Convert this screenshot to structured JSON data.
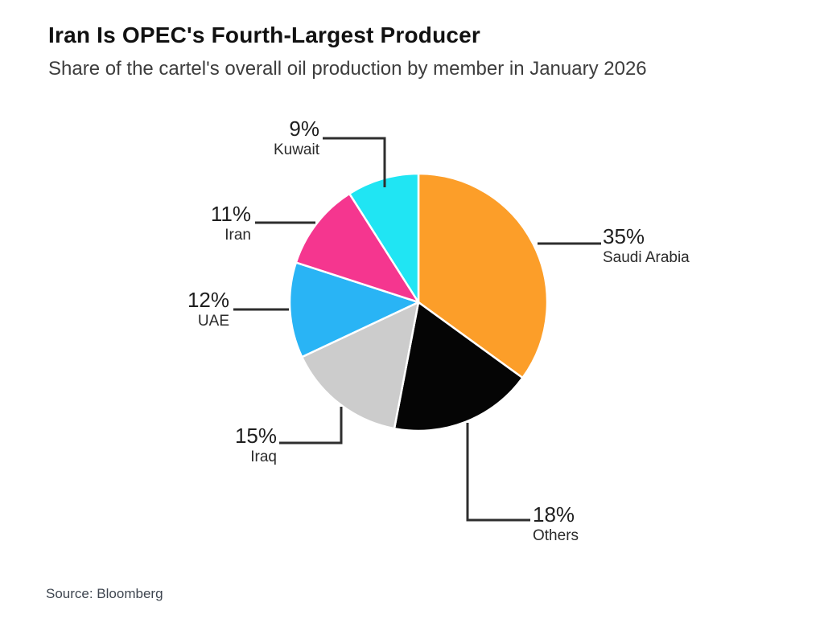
{
  "page": {
    "title": "Iran Is OPEC's Fourth-Largest Producer",
    "subtitle": "Share of the cartel's overall oil production by member in January 2026",
    "source": "Source: Bloomberg"
  },
  "chart_data": {
    "type": "pie",
    "title": "Iran Is OPEC's Fourth-Largest Producer",
    "subtitle": "Share of the cartel's overall oil production by member in January 2026",
    "source": "Source: Bloomberg",
    "unit": "percent",
    "start_angle_deg": 0,
    "direction": "clockwise",
    "legend_position": "callout-labels",
    "slices": [
      {
        "label": "Saudi Arabia",
        "value": 35,
        "display": "35%",
        "color": "#FC9E29"
      },
      {
        "label": "Others",
        "value": 18,
        "display": "18%",
        "color": "#050505"
      },
      {
        "label": "Iraq",
        "value": 15,
        "display": "15%",
        "color": "#CCCCCC"
      },
      {
        "label": "UAE",
        "value": 12,
        "display": "12%",
        "color": "#29B4F5"
      },
      {
        "label": "Iran",
        "value": 11,
        "display": "11%",
        "color": "#F5368F"
      },
      {
        "label": "Kuwait",
        "value": 9,
        "display": "9%",
        "color": "#20E5F3"
      }
    ]
  }
}
